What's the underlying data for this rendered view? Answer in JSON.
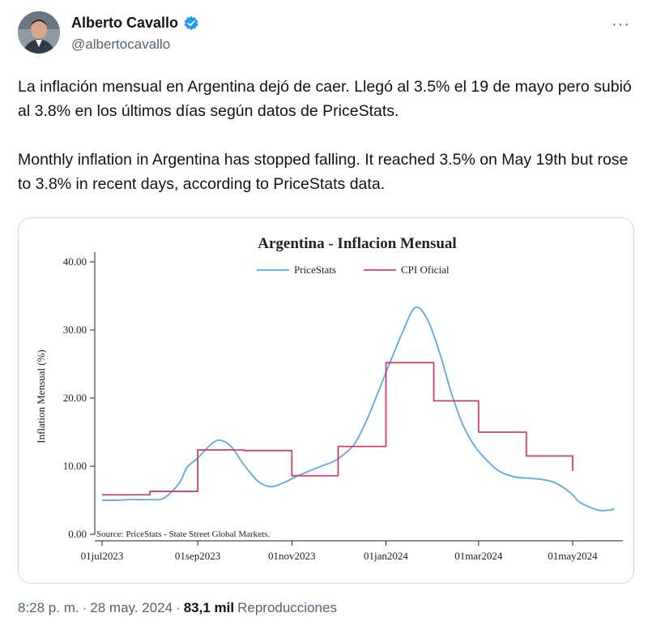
{
  "author": {
    "display_name": "Alberto Cavallo",
    "handle": "@albertocavallo",
    "verified_icon": "verified-badge-icon",
    "verified_color": "#1d9bf0"
  },
  "more_button": "···",
  "tweet_text": "La inflación mensual en Argentina dejó de caer. Llegó al 3.5% el 19 de mayo pero subió al 3.8% en los últimos días según datos de PriceStats.\n\nMonthly inflation in Argentina has stopped falling. It reached 3.5% on May 19th but rose to 3.8% in recent days, according to PriceStats data.",
  "meta": {
    "time": "8:28 p. m.",
    "sep1": "·",
    "date": "28 may. 2024",
    "sep2": "·",
    "views_count": "83,1 mil",
    "views_label": "Reproducciones"
  },
  "chart_data": {
    "type": "line",
    "title": "Argentina - Inflacion Mensual",
    "ylabel": "Inflation Mensual (%)",
    "xlabel": "",
    "source": "Source: PriceStats - State Street Global Markets.",
    "ylim": [
      0,
      40
    ],
    "yticks": [
      "0.00",
      "10.00",
      "20.00",
      "30.00",
      "40.00"
    ],
    "xticks": [
      "01jul2023",
      "01sep2023",
      "01nov2023",
      "01jan2024",
      "01mar2024",
      "01may2024"
    ],
    "legend_position": "top",
    "grid": false,
    "series": [
      {
        "name": "PriceStats",
        "color": "#5aa8e6",
        "style": "smooth",
        "points": [
          [
            "2023-07-01",
            5.0
          ],
          [
            "2023-07-10",
            5.0
          ],
          [
            "2023-07-20",
            5.1
          ],
          [
            "2023-08-01",
            5.1
          ],
          [
            "2023-08-10",
            5.3
          ],
          [
            "2023-08-20",
            7.5
          ],
          [
            "2023-08-25",
            9.8
          ],
          [
            "2023-09-01",
            11.2
          ],
          [
            "2023-09-10",
            13.3
          ],
          [
            "2023-09-16",
            13.8
          ],
          [
            "2023-09-23",
            12.8
          ],
          [
            "2023-10-01",
            10.2
          ],
          [
            "2023-10-10",
            7.8
          ],
          [
            "2023-10-18",
            7.0
          ],
          [
            "2023-10-26",
            7.5
          ],
          [
            "2023-11-05",
            8.6
          ],
          [
            "2023-11-20",
            10.0
          ],
          [
            "2023-11-28",
            10.7
          ],
          [
            "2023-12-05",
            11.8
          ],
          [
            "2023-12-12",
            13.4
          ],
          [
            "2023-12-20",
            17.0
          ],
          [
            "2023-12-28",
            21.5
          ],
          [
            "2024-01-05",
            26.0
          ],
          [
            "2024-01-12",
            29.8
          ],
          [
            "2024-01-20",
            33.3
          ],
          [
            "2024-01-28",
            31.5
          ],
          [
            "2024-02-05",
            26.5
          ],
          [
            "2024-02-12",
            21.0
          ],
          [
            "2024-02-20",
            16.0
          ],
          [
            "2024-02-28",
            12.8
          ],
          [
            "2024-03-08",
            10.5
          ],
          [
            "2024-03-15",
            9.2
          ],
          [
            "2024-03-25",
            8.4
          ],
          [
            "2024-04-05",
            8.2
          ],
          [
            "2024-04-15",
            7.9
          ],
          [
            "2024-04-22",
            7.3
          ],
          [
            "2024-04-30",
            6.0
          ],
          [
            "2024-05-05",
            4.8
          ],
          [
            "2024-05-12",
            4.0
          ],
          [
            "2024-05-19",
            3.5
          ],
          [
            "2024-05-26",
            3.6
          ],
          [
            "2024-05-28",
            3.8
          ]
        ]
      },
      {
        "name": "CPI Oficial",
        "color": "#c8436e",
        "style": "step",
        "points": [
          [
            "2023-07-01",
            5.8
          ],
          [
            "2023-08-01",
            6.3
          ],
          [
            "2023-09-01",
            12.4
          ],
          [
            "2023-10-01",
            12.3
          ],
          [
            "2023-11-01",
            8.6
          ],
          [
            "2023-12-01",
            12.9
          ],
          [
            "2024-01-01",
            25.2
          ],
          [
            "2024-02-01",
            19.6
          ],
          [
            "2024-03-01",
            15.0
          ],
          [
            "2024-04-01",
            11.5
          ],
          [
            "2024-05-01",
            9.3
          ]
        ]
      }
    ]
  }
}
